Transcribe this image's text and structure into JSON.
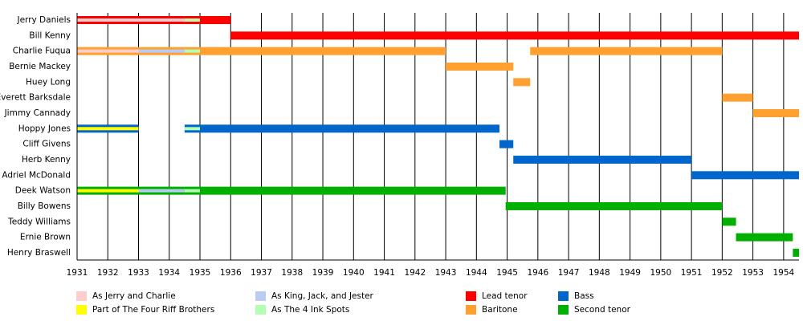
{
  "chart_data": {
    "type": "timeline",
    "xlim": [
      1931,
      1954.5
    ],
    "xticks": [
      1931,
      1932,
      1933,
      1934,
      1935,
      1936,
      1937,
      1938,
      1939,
      1940,
      1941,
      1942,
      1943,
      1944,
      1945,
      1946,
      1947,
      1948,
      1949,
      1950,
      1951,
      1952,
      1953,
      1954
    ],
    "grid": true,
    "roles": [
      {
        "name": "Lead tenor",
        "color": "#ff0000"
      },
      {
        "name": "Baritone",
        "color": "#ffa030"
      },
      {
        "name": "Bass",
        "color": "#0066cc"
      },
      {
        "name": "Second tenor",
        "color": "#00b000"
      }
    ],
    "bands": [
      {
        "name": "As Jerry and Charlie",
        "color": "#ffcccc"
      },
      {
        "name": "Part of The Four Riff Brothers",
        "color": "#ffff00"
      },
      {
        "name": "As King, Jack, and Jester",
        "color": "#b8ccf4"
      },
      {
        "name": "As The 4 Ink Spots",
        "color": "#b4ffb4"
      }
    ],
    "members": [
      {
        "name": "Jerry Daniels",
        "spans": [
          {
            "start": 1931,
            "end": 1934.5,
            "role": 0,
            "band": 0
          },
          {
            "start": 1934.5,
            "end": 1935,
            "role": 0,
            "band": 3
          },
          {
            "start": 1935,
            "end": 1936,
            "role": 0
          }
        ]
      },
      {
        "name": "Bill Kenny",
        "spans": [
          {
            "start": 1936,
            "end": 1954.5,
            "role": 0
          }
        ]
      },
      {
        "name": "Charlie Fuqua",
        "spans": [
          {
            "start": 1931,
            "end": 1933,
            "role": 1,
            "band": 0
          },
          {
            "start": 1933,
            "end": 1934.5,
            "role": 1,
            "band": 2
          },
          {
            "start": 1934.5,
            "end": 1935,
            "role": 1,
            "band": 3
          },
          {
            "start": 1935,
            "end": 1943,
            "role": 1
          },
          {
            "start": 1945.75,
            "end": 1952,
            "role": 1
          }
        ]
      },
      {
        "name": "Bernie Mackey",
        "spans": [
          {
            "start": 1943,
            "end": 1945.2,
            "role": 1
          }
        ]
      },
      {
        "name": "Huey Long",
        "spans": [
          {
            "start": 1945.2,
            "end": 1945.75,
            "role": 1
          }
        ]
      },
      {
        "name": "Everett Barksdale",
        "spans": [
          {
            "start": 1952,
            "end": 1953,
            "role": 1
          }
        ]
      },
      {
        "name": "Jimmy Cannady",
        "spans": [
          {
            "start": 1953,
            "end": 1954.5,
            "role": 1
          }
        ]
      },
      {
        "name": "Hoppy Jones",
        "spans": [
          {
            "start": 1931,
            "end": 1933,
            "role": 2,
            "band": 1
          },
          {
            "start": 1934.5,
            "end": 1935,
            "role": 2,
            "band": 3
          },
          {
            "start": 1935,
            "end": 1944.75,
            "role": 2
          }
        ]
      },
      {
        "name": "Cliff Givens",
        "spans": [
          {
            "start": 1944.75,
            "end": 1945.2,
            "role": 2
          }
        ]
      },
      {
        "name": "Herb Kenny",
        "spans": [
          {
            "start": 1945.2,
            "end": 1951,
            "role": 2
          }
        ]
      },
      {
        "name": "Adriel McDonald",
        "spans": [
          {
            "start": 1951,
            "end": 1954.5,
            "role": 2
          }
        ]
      },
      {
        "name": "Deek Watson",
        "spans": [
          {
            "start": 1931,
            "end": 1933,
            "role": 3,
            "band": 1
          },
          {
            "start": 1933,
            "end": 1934.5,
            "role": 3,
            "band": 2
          },
          {
            "start": 1934.5,
            "end": 1935,
            "role": 3,
            "band": 3
          },
          {
            "start": 1935,
            "end": 1944.95,
            "role": 3
          }
        ]
      },
      {
        "name": "Billy Bowens",
        "spans": [
          {
            "start": 1944.95,
            "end": 1952,
            "role": 3
          }
        ]
      },
      {
        "name": "Teddy Williams",
        "spans": [
          {
            "start": 1952,
            "end": 1952.45,
            "role": 3
          }
        ]
      },
      {
        "name": "Ernie Brown",
        "spans": [
          {
            "start": 1952.45,
            "end": 1954.3,
            "role": 3
          }
        ]
      },
      {
        "name": "Henry Braswell",
        "spans": [
          {
            "start": 1954.3,
            "end": 1954.5,
            "role": 3
          }
        ]
      }
    ]
  }
}
